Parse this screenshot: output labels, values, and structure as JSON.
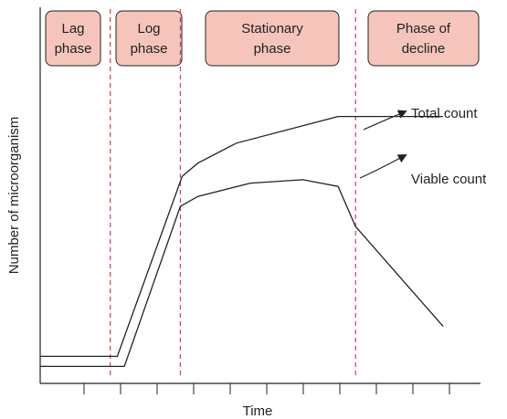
{
  "chart_data": {
    "type": "line",
    "title": "",
    "xlabel": "Time",
    "ylabel": "Number of microorganism",
    "grid": false,
    "colors": {
      "phase_fill": "#f5c5bb",
      "divider": "#e03a4a",
      "line": "#222222"
    },
    "phases": [
      {
        "label": [
          "Lag",
          "phase"
        ]
      },
      {
        "label": [
          "Log",
          "phase"
        ]
      },
      {
        "label": [
          "Stationary",
          "phase"
        ]
      },
      {
        "label": [
          "Phase of",
          "decline"
        ]
      }
    ],
    "phase_boundaries": [
      2,
      4,
      9
    ],
    "xlim": [
      0,
      12
    ],
    "ylim": [
      0,
      10
    ],
    "series": [
      {
        "name": "Total count",
        "points": [
          [
            0,
            0.4
          ],
          [
            2.2,
            0.4
          ],
          [
            4.05,
            5.8
          ],
          [
            4.5,
            6.2
          ],
          [
            5.6,
            6.8
          ],
          [
            8.5,
            7.6
          ],
          [
            11.5,
            7.6
          ]
        ]
      },
      {
        "name": "Viable count",
        "points": [
          [
            0,
            0.1
          ],
          [
            2.4,
            0.1
          ],
          [
            4.0,
            4.9
          ],
          [
            4.5,
            5.2
          ],
          [
            6.0,
            5.6
          ],
          [
            7.5,
            5.7
          ],
          [
            8.5,
            5.5
          ],
          [
            9.0,
            4.3
          ],
          [
            11.5,
            1.3
          ]
        ]
      }
    ]
  }
}
